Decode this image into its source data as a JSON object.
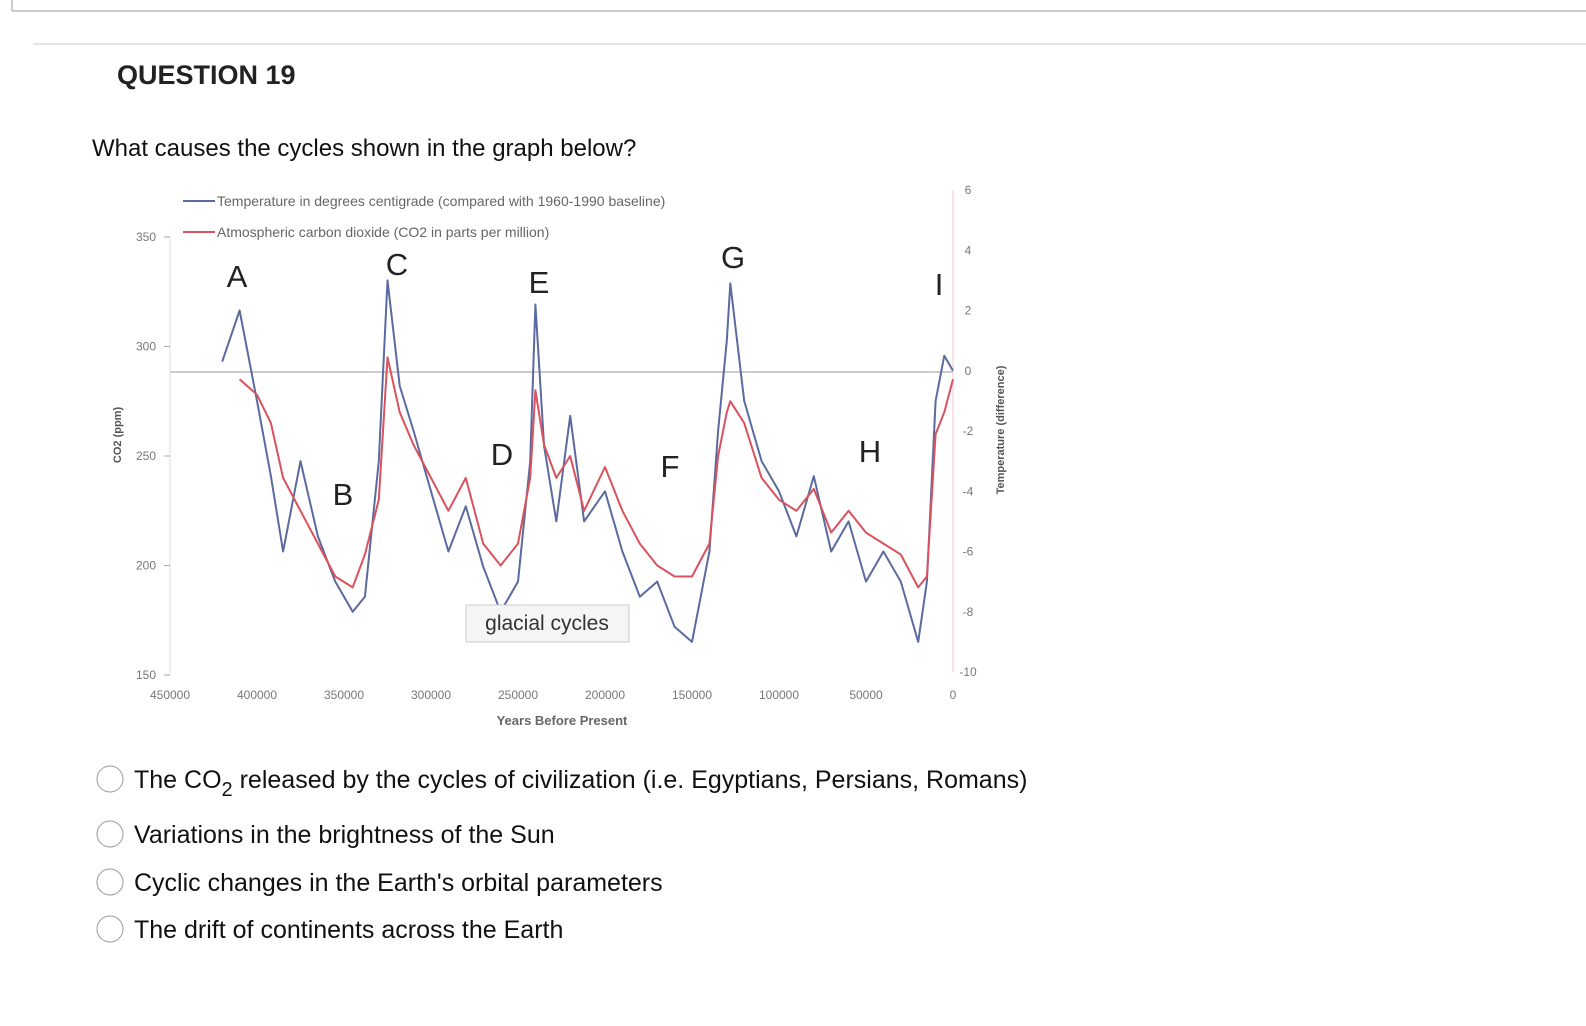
{
  "question": {
    "number": "QUESTION 19",
    "text": "What causes the cycles shown in the graph below?"
  },
  "chart_data": {
    "type": "line",
    "x": [
      420000,
      410000,
      400000,
      392000,
      385000,
      375000,
      365000,
      355000,
      345000,
      338000,
      330000,
      325000,
      318000,
      310000,
      300000,
      290000,
      280000,
      270000,
      260000,
      250000,
      243000,
      240000,
      235000,
      228000,
      220000,
      212000,
      200000,
      190000,
      180000,
      170000,
      160000,
      150000,
      140000,
      135000,
      130000,
      128000,
      120000,
      110000,
      100000,
      90000,
      80000,
      70000,
      60000,
      50000,
      40000,
      30000,
      20000,
      15000,
      10000,
      5000,
      0
    ],
    "series": [
      {
        "name": "Temperature in degrees centigrade (compared with 1960-1990 baseline)",
        "color": "#5b6a9f",
        "axis": "y2",
        "values": [
          0.3,
          2.0,
          -1.0,
          -3.5,
          -6.0,
          -3.0,
          -5.5,
          -7.0,
          -8.0,
          -7.5,
          -3.0,
          3.0,
          -0.5,
          -2.0,
          -4.0,
          -6.0,
          -4.5,
          -6.5,
          -8.0,
          -7.0,
          -3.0,
          2.2,
          -2.5,
          -5.0,
          -1.5,
          -5.0,
          -4.0,
          -6.0,
          -7.5,
          -7.0,
          -8.5,
          -9.0,
          -6.0,
          -2.0,
          1.0,
          2.9,
          -1.0,
          -3.0,
          -4.0,
          -5.5,
          -3.5,
          -6.0,
          -5.0,
          -7.0,
          -6.0,
          -7.0,
          -9.0,
          -7.0,
          -1.0,
          0.5,
          0.0
        ]
      },
      {
        "name": "Atmospheric carbon dioxide (CO2 in parts per million)",
        "color": "#d9525e",
        "values": [
          null,
          285,
          278,
          265,
          240,
          225,
          210,
          195,
          190,
          205,
          230,
          295,
          270,
          255,
          240,
          225,
          240,
          210,
          200,
          210,
          240,
          280,
          255,
          240,
          250,
          225,
          245,
          225,
          210,
          200,
          195,
          195,
          210,
          250,
          270,
          275,
          265,
          240,
          230,
          225,
          235,
          215,
          225,
          215,
          210,
          205,
          190,
          195,
          260,
          270,
          285
        ]
      }
    ],
    "xlim": [
      450000,
      0
    ],
    "xticks": [
      450000,
      400000,
      350000,
      300000,
      250000,
      200000,
      150000,
      100000,
      50000,
      0
    ],
    "ylim": [
      150,
      350
    ],
    "yticks": [
      150,
      200,
      250,
      300,
      350
    ],
    "y2lim": [
      -10,
      6
    ],
    "y2ticks": [
      -10,
      -8,
      -6,
      -4,
      -2,
      0,
      2,
      4,
      6
    ],
    "xlabel": "Years Before Present",
    "ylabel": "CO2 (ppm)",
    "y2label": "Temperature (difference)",
    "annotations": [
      "A",
      "B",
      "C",
      "D",
      "E",
      "F",
      "G",
      "H",
      "I"
    ],
    "tooltip": "glacial cycles"
  },
  "options": [
    [
      "The CO",
      "2",
      " released by the cycles of civilization (i.e. Egyptians, Persians, Romans)"
    ],
    [
      "Variations in the brightness of the Sun"
    ],
    [
      "Cyclic changes in the Earth's orbital parameters"
    ],
    [
      "The drift of continents across the Earth"
    ]
  ]
}
